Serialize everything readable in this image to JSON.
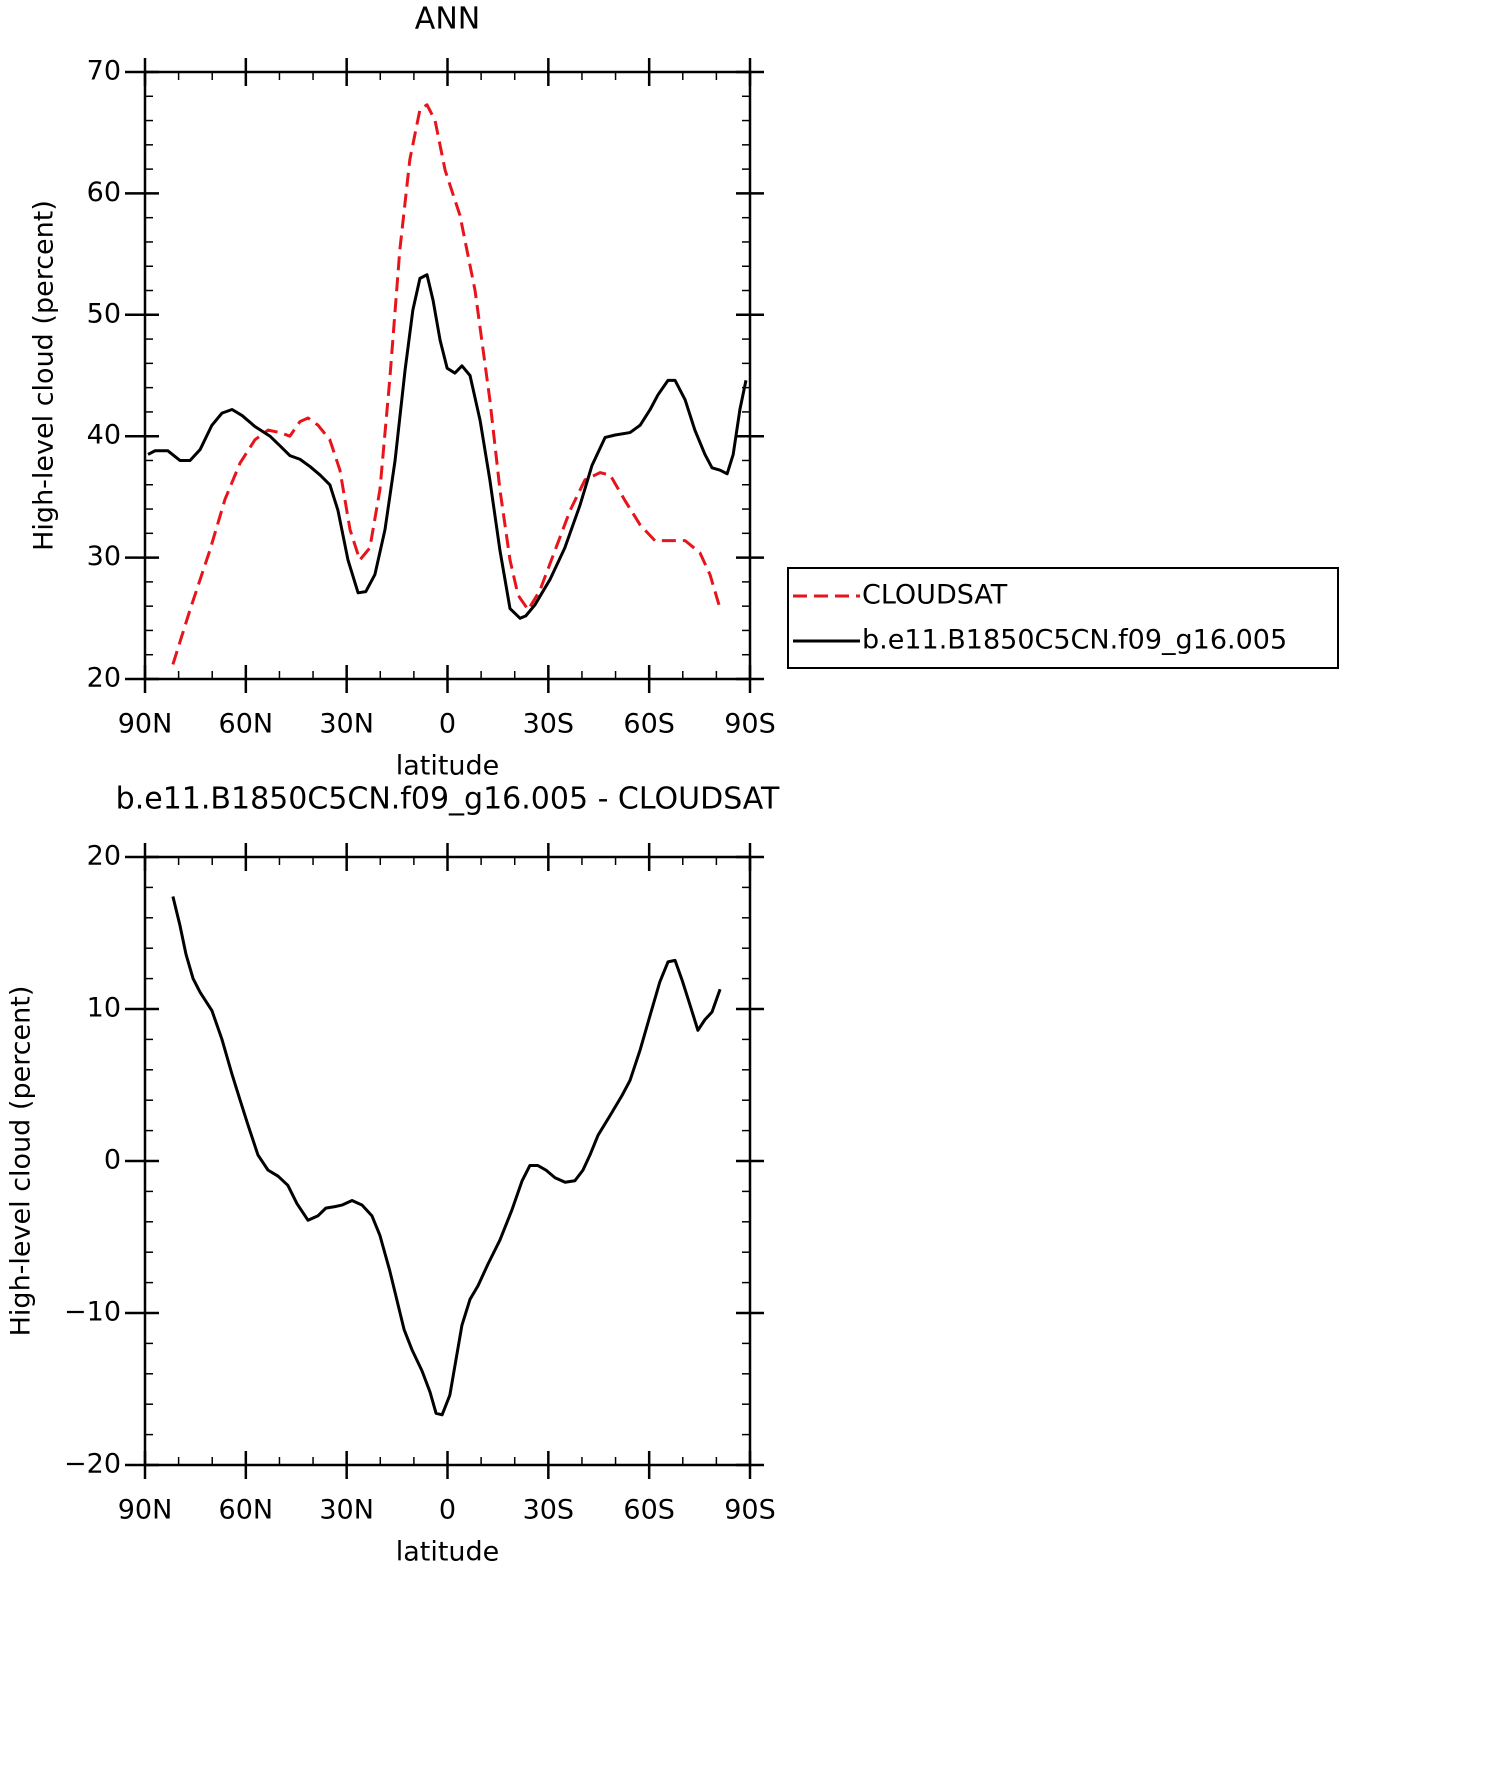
{
  "chart_data": [
    {
      "type": "line",
      "title": "ANN",
      "xlabel": "latitude",
      "ylabel": "High-level cloud (percent)",
      "xlim": [
        90,
        -90
      ],
      "xticks": [
        {
          "value": 90,
          "label": "90N"
        },
        {
          "value": 60,
          "label": "60N"
        },
        {
          "value": 30,
          "label": "30N"
        },
        0,
        {
          "value": -30,
          "label": "30S"
        },
        {
          "value": -60,
          "label": "60S"
        },
        {
          "value": -90,
          "label": "90S"
        }
      ],
      "ylim": [
        20,
        70
      ],
      "yticks": [
        20,
        30,
        40,
        50,
        60,
        70
      ],
      "series": [
        {
          "name": "CLOUDSAT",
          "color": "#e8141c",
          "dashed": true,
          "x": [
            81.7,
            76.6,
            70.7,
            66.2,
            61.7,
            57.3,
            53.4,
            49.8,
            46.9,
            43.9,
            41.5,
            38.5,
            35.0,
            32.0,
            29.0,
            26.1,
            23.1,
            20.1,
            17.2,
            14.2,
            11.2,
            8.2,
            6.1,
            3.7,
            0.7,
            -3.7,
            -8.2,
            -12.6,
            -15.6,
            -18.6,
            -21.0,
            -24.0,
            -27.5,
            -32.0,
            -36.5,
            -40.9,
            -45.4,
            -48.4,
            -52.8,
            -57.3,
            -61.7,
            -66.2,
            -70.7,
            -75.1,
            -78.1,
            -81.1
          ],
          "values": [
            21.2,
            25.7,
            30.6,
            34.8,
            37.8,
            39.7,
            40.5,
            40.3,
            40.0,
            41.2,
            41.5,
            40.9,
            39.7,
            37.2,
            32.3,
            29.8,
            30.8,
            35.6,
            44.6,
            55.3,
            62.8,
            66.9,
            67.3,
            66.0,
            61.9,
            58.2,
            52.0,
            43.0,
            35.6,
            29.8,
            26.9,
            25.7,
            27.3,
            30.6,
            33.9,
            36.4,
            37.0,
            36.8,
            34.7,
            32.7,
            31.4,
            31.4,
            31.4,
            30.4,
            28.6,
            25.8
          ]
        },
        {
          "name": "b.e11.B1850C5CN.f09_g16.005",
          "color": "#000000",
          "dashed": false,
          "x": [
            89.1,
            87.0,
            83.2,
            79.6,
            76.6,
            73.6,
            70.1,
            67.1,
            64.1,
            61.1,
            57.3,
            52.8,
            49.8,
            46.9,
            43.9,
            40.9,
            37.9,
            35.0,
            32.6,
            29.6,
            26.6,
            24.3,
            21.6,
            18.6,
            15.6,
            12.6,
            10.3,
            8.2,
            6.1,
            4.3,
            2.2,
            0.1,
            -2.2,
            -4.3,
            -6.7,
            -9.7,
            -12.6,
            -15.6,
            -18.6,
            -21.6,
            -23.3,
            -26.0,
            -30.5,
            -34.9,
            -39.4,
            -43.0,
            -46.9,
            -49.9,
            -54.3,
            -57.3,
            -60.3,
            -62.6,
            -65.6,
            -67.7,
            -70.7,
            -73.6,
            -76.6,
            -78.7,
            -81.1,
            -83.2,
            -85.0,
            -87.0,
            -88.8
          ],
          "values": [
            38.5,
            38.8,
            38.8,
            38.0,
            38.0,
            38.9,
            40.9,
            41.9,
            42.2,
            41.7,
            40.8,
            40.0,
            39.2,
            38.4,
            38.1,
            37.5,
            36.8,
            36.0,
            33.9,
            29.8,
            27.1,
            27.2,
            28.6,
            32.3,
            38.0,
            45.5,
            50.4,
            53.0,
            53.3,
            51.2,
            47.9,
            45.6,
            45.2,
            45.8,
            45.0,
            41.3,
            36.4,
            30.6,
            25.8,
            25.0,
            25.2,
            26.1,
            28.2,
            30.8,
            34.3,
            37.6,
            39.9,
            40.1,
            40.3,
            40.9,
            42.2,
            43.4,
            44.6,
            44.6,
            43.0,
            40.5,
            38.5,
            37.4,
            37.2,
            36.9,
            38.5,
            42.2,
            44.6
          ]
        }
      ]
    },
    {
      "type": "line",
      "title": "b.e11.B1850C5CN.f09_g16.005 - CLOUDSAT",
      "xlabel": "latitude",
      "ylabel": "High-level cloud (percent)",
      "xlim": [
        90,
        -90
      ],
      "xticks": [
        {
          "value": 90,
          "label": "90N"
        },
        {
          "value": 60,
          "label": "60N"
        },
        {
          "value": 30,
          "label": "30N"
        },
        0,
        {
          "value": -30,
          "label": "30S"
        },
        {
          "value": -60,
          "label": "60S"
        },
        {
          "value": -90,
          "label": "90S"
        }
      ],
      "ylim": [
        -20,
        20
      ],
      "yticks": [
        {
          "value": -20,
          "label": "−20"
        },
        {
          "value": -10,
          "label": "−10"
        },
        0,
        10,
        20
      ],
      "color": "#000000",
      "x": [
        81.7,
        79.6,
        77.8,
        75.7,
        73.6,
        70.1,
        67.1,
        64.1,
        61.7,
        59.4,
        56.4,
        53.4,
        50.4,
        47.5,
        44.8,
        41.5,
        38.5,
        36.2,
        33.5,
        31.4,
        28.4,
        25.4,
        22.5,
        20.1,
        17.2,
        12.9,
        10.6,
        7.6,
        5.2,
        3.4,
        1.6,
        -0.7,
        -2.5,
        -4.3,
        -6.7,
        -9.1,
        -12.0,
        -15.6,
        -19.2,
        -22.2,
        -24.5,
        -26.9,
        -29.3,
        -32.0,
        -35.0,
        -37.9,
        -40.3,
        -42.4,
        -44.8,
        -48.4,
        -51.9,
        -54.3,
        -57.3,
        -60.3,
        -63.2,
        -65.6,
        -67.7,
        -69.8,
        -72.1,
        -74.5,
        -76.6,
        -78.7,
        -81.1
      ],
      "values": [
        17.4,
        15.5,
        13.6,
        12.0,
        11.1,
        9.9,
        8.0,
        5.7,
        4.0,
        2.4,
        0.4,
        -0.6,
        -1.0,
        -1.6,
        -2.8,
        -3.9,
        -3.6,
        -3.1,
        -3.0,
        -2.9,
        -2.6,
        -2.9,
        -3.6,
        -4.9,
        -7.2,
        -11.1,
        -12.4,
        -13.8,
        -15.2,
        -16.6,
        -16.7,
        -15.4,
        -13.1,
        -10.8,
        -9.1,
        -8.2,
        -6.8,
        -5.2,
        -3.2,
        -1.3,
        -0.3,
        -0.3,
        -0.6,
        -1.1,
        -1.4,
        -1.3,
        -0.6,
        0.4,
        1.7,
        3.0,
        4.3,
        5.3,
        7.3,
        9.6,
        11.8,
        13.1,
        13.2,
        11.9,
        10.3,
        8.6,
        9.3,
        9.8,
        11.3
      ]
    }
  ]
}
